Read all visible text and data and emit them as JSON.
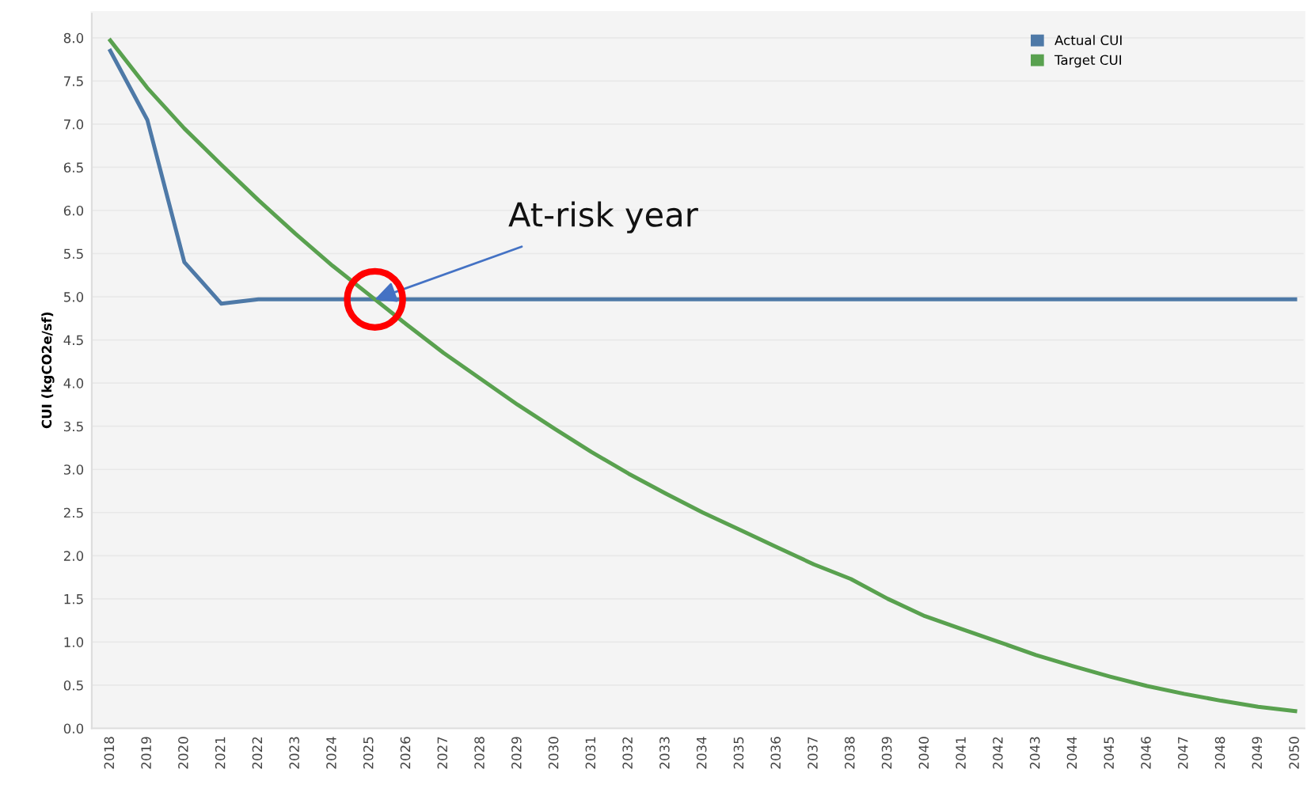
{
  "chart_data": {
    "type": "line",
    "ylabel": "CUI (kgCO2e/sf)",
    "categories": [
      "2018",
      "2019",
      "2020",
      "2021",
      "2022",
      "2023",
      "2024",
      "2025",
      "2026",
      "2027",
      "2028",
      "2029",
      "2030",
      "2031",
      "2032",
      "2033",
      "2034",
      "2035",
      "2036",
      "2037",
      "2038",
      "2039",
      "2040",
      "2041",
      "2042",
      "2043",
      "2044",
      "2045",
      "2046",
      "2047",
      "2048",
      "2049",
      "2050"
    ],
    "series": [
      {
        "name": "Actual CUI",
        "color": "#4e79a7",
        "values": [
          7.85,
          7.05,
          5.4,
          4.92,
          4.97,
          4.97,
          4.97,
          4.97,
          4.97,
          4.97,
          4.97,
          4.97,
          4.97,
          4.97,
          4.97,
          4.97,
          4.97,
          4.97,
          4.97,
          4.97,
          4.97,
          4.97,
          4.97,
          4.97,
          4.97,
          4.97,
          4.97,
          4.97,
          4.97,
          4.97,
          4.97,
          4.97,
          4.97
        ]
      },
      {
        "name": "Target CUI",
        "color": "#59a14f",
        "values": [
          7.97,
          7.42,
          6.95,
          6.53,
          6.12,
          5.73,
          5.36,
          5.02,
          4.68,
          4.35,
          4.05,
          3.75,
          3.47,
          3.2,
          2.95,
          2.72,
          2.5,
          2.3,
          2.1,
          1.9,
          1.73,
          1.5,
          1.3,
          1.15,
          1.0,
          0.85,
          0.72,
          0.6,
          0.49,
          0.4,
          0.32,
          0.25,
          0.2
        ]
      }
    ],
    "ylim": [
      0,
      8.3
    ],
    "yticks": [
      {
        "value": 0,
        "label": "0.0"
      },
      {
        "value": 0.5,
        "label": "0.5"
      },
      {
        "value": 1,
        "label": "1.0"
      },
      {
        "value": 1.5,
        "label": "1.5"
      },
      {
        "value": 2,
        "label": "2.0"
      },
      {
        "value": 2.5,
        "label": "2.5"
      },
      {
        "value": 3,
        "label": "3.0"
      },
      {
        "value": 3.5,
        "label": "3.5"
      },
      {
        "value": 4,
        "label": "4.0"
      },
      {
        "value": 4.5,
        "label": "4.5"
      },
      {
        "value": 5,
        "label": "5.0"
      },
      {
        "value": 5.5,
        "label": "5.5"
      },
      {
        "value": 6,
        "label": "6.0"
      },
      {
        "value": 6.5,
        "label": "6.5"
      },
      {
        "value": 7,
        "label": "7.0"
      },
      {
        "value": 7.5,
        "label": "7.5"
      },
      {
        "value": 8,
        "label": "8.0"
      }
    ],
    "annotations": [
      {
        "text": "At-risk year",
        "y": 4.97
      }
    ],
    "grid": "y",
    "legend": "top right",
    "marker": "none",
    "line_style": "solid"
  }
}
